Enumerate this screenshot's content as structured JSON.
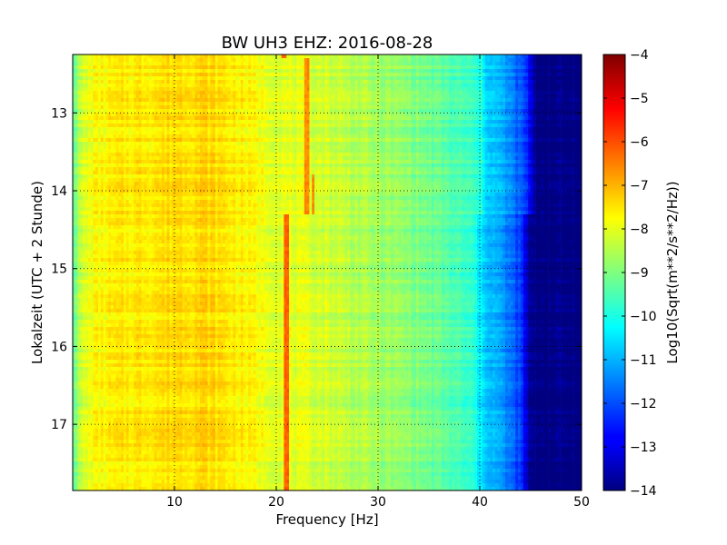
{
  "chart_data": {
    "type": "heatmap",
    "title": "BW UH3 EHZ: 2016-08-28",
    "xlabel": "Frequency [Hz]",
    "ylabel": "Lokalzeit (UTC + 2 Stunde)",
    "colorbar_label": "Log10(Sqrt(m**2/s**2/Hz))",
    "xlim": [
      0,
      50
    ],
    "ylim": [
      12.25,
      17.85
    ],
    "y_inverted": true,
    "x_ticks": [
      10,
      20,
      30,
      40,
      50
    ],
    "x_tick_labels": [
      "10",
      "20",
      "30",
      "40",
      "50"
    ],
    "y_ticks": [
      13,
      14,
      15,
      16,
      17
    ],
    "y_tick_labels": [
      "13",
      "14",
      "15",
      "16",
      "17"
    ],
    "color_range": [
      -14,
      -4
    ],
    "colorbar_ticks": [
      -4,
      -5,
      -6,
      -7,
      -8,
      -9,
      -10,
      -11,
      -12,
      -13,
      -14
    ],
    "colorbar_tick_labels": [
      "−4",
      "−5",
      "−6",
      "−7",
      "−8",
      "−9",
      "−10",
      "−11",
      "−12",
      "−13",
      "−14"
    ],
    "colormap": "jet",
    "grid": true,
    "frequency_profile_hz": [
      0,
      1,
      2,
      5,
      8,
      10,
      13,
      16,
      18,
      20,
      25,
      28,
      30,
      33,
      36,
      38,
      39.5,
      40,
      42,
      44,
      45,
      50
    ],
    "frequency_profile_value": [
      -9.2,
      -8.2,
      -7.8,
      -7.6,
      -7.5,
      -7.4,
      -7.35,
      -7.6,
      -7.8,
      -8.0,
      -8.2,
      -8.5,
      -8.7,
      -8.9,
      -9.3,
      -9.6,
      -9.9,
      -10.5,
      -11.2,
      -12.2,
      -14,
      -14
    ],
    "spectral_lines": [
      {
        "time_range": [
          12.25,
          12.3
        ],
        "freq_hz": 20.8,
        "value": -6.3
      },
      {
        "time_range": [
          12.3,
          14.32
        ],
        "freq_hz": 23.0,
        "value": -6.6
      },
      {
        "time_range": [
          13.8,
          14.3
        ],
        "freq_hz": 23.6,
        "value": -6.6
      },
      {
        "time_range": [
          14.32,
          17.85
        ],
        "freq_hz": 21.0,
        "value": -6.2
      }
    ],
    "high_freq_step": {
      "time": 14.32,
      "before_edge_hz": 40,
      "after_edge_hz": 39.5
    }
  }
}
